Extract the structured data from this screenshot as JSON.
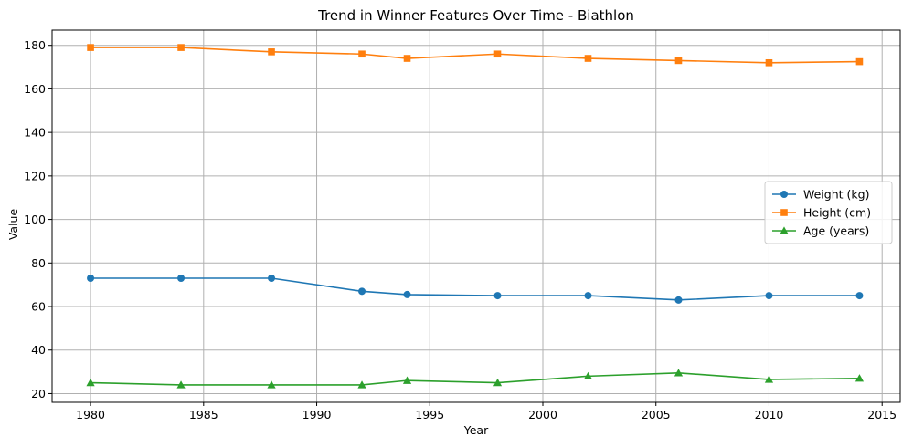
{
  "chart_data": {
    "type": "line",
    "title": "Trend in Winner Features Over Time - Biathlon",
    "xlabel": "Year",
    "ylabel": "Value",
    "xlim": [
      1978.3,
      1980.0
    ],
    "ylim": [
      16.0,
      187.0
    ],
    "x_ticks": [
      1980,
      1985,
      1990,
      1995,
      2000,
      2005,
      2010,
      2015
    ],
    "y_ticks": [
      20,
      40,
      60,
      80,
      100,
      120,
      140,
      160,
      180
    ],
    "grid": true,
    "legend_position": "center-right",
    "x": [
      1980,
      1984,
      1988,
      1992,
      1994,
      1998,
      2002,
      2006,
      2010,
      2014
    ],
    "series": [
      {
        "name": "Weight (kg)",
        "marker": "circle",
        "color": "#1f77b4",
        "values": [
          73,
          73,
          73,
          67,
          65.5,
          65,
          65,
          63,
          65,
          65
        ]
      },
      {
        "name": "Height (cm)",
        "marker": "square",
        "color": "#ff7f0e",
        "values": [
          179,
          179,
          177,
          176,
          174,
          176,
          174,
          173,
          172,
          172.5
        ]
      },
      {
        "name": "Age (years)",
        "marker": "triangle",
        "color": "#2ca02c",
        "values": [
          25,
          24,
          24,
          24,
          26,
          25,
          28,
          29.5,
          26.5,
          27
        ]
      }
    ]
  }
}
